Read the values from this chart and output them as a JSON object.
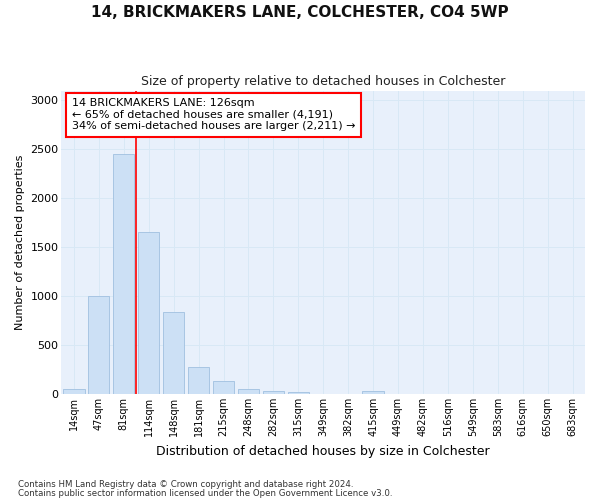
{
  "title1": "14, BRICKMAKERS LANE, COLCHESTER, CO4 5WP",
  "title2": "Size of property relative to detached houses in Colchester",
  "xlabel": "Distribution of detached houses by size in Colchester",
  "ylabel": "Number of detached properties",
  "footnote1": "Contains HM Land Registry data © Crown copyright and database right 2024.",
  "footnote2": "Contains public sector information licensed under the Open Government Licence v3.0.",
  "annotation_line1": "14 BRICKMAKERS LANE: 126sqm",
  "annotation_line2": "← 65% of detached houses are smaller (4,191)",
  "annotation_line3": "34% of semi-detached houses are larger (2,211) →",
  "bar_labels": [
    "14sqm",
    "47sqm",
    "81sqm",
    "114sqm",
    "148sqm",
    "181sqm",
    "215sqm",
    "248sqm",
    "282sqm",
    "315sqm",
    "349sqm",
    "382sqm",
    "415sqm",
    "449sqm",
    "482sqm",
    "516sqm",
    "549sqm",
    "583sqm",
    "616sqm",
    "650sqm",
    "683sqm"
  ],
  "bar_values": [
    55,
    1000,
    2450,
    1650,
    840,
    275,
    135,
    55,
    35,
    25,
    0,
    0,
    30,
    0,
    0,
    0,
    0,
    0,
    0,
    0,
    0
  ],
  "bar_color": "#cce0f5",
  "bar_edge_color": "#a0c0e0",
  "red_line_x": 2.5,
  "ylim": [
    0,
    3100
  ],
  "yticks": [
    0,
    500,
    1000,
    1500,
    2000,
    2500,
    3000
  ],
  "grid_color": "#d8e8f5",
  "bg_color": "#e8f0fb"
}
